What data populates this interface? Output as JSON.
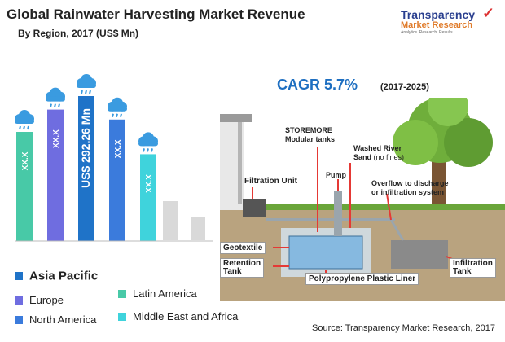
{
  "header": {
    "title": "Global Rainwater Harvesting Market Revenue",
    "subtitle": "By Region, 2017 (US$ Mn)"
  },
  "logo": {
    "line1": "Transparency",
    "line2": "Market Research",
    "tagline": "Analytics. Research. Results."
  },
  "cagr": {
    "label": "CAGR 5.7%",
    "period": "(2017-2025)"
  },
  "colors": {
    "latin_america": "#48c9a7",
    "europe": "#6f6de0",
    "north_america": "#1f73c8",
    "asia_pacific": "#3b7bdc",
    "mea": "#3fd3dc",
    "faded": "#d9d9d9",
    "cloud": "#3a9be0"
  },
  "legend": [
    {
      "label": "Asia Pacific",
      "color": "#1f73c8"
    },
    {
      "label": "Europe",
      "color": "#6f6de0"
    },
    {
      "label": "Latin America",
      "color": "#48c9a7"
    },
    {
      "label": "North America",
      "color": "#3b7bdc"
    },
    {
      "label": "Middle East and Africa",
      "color": "#3fd3dc"
    }
  ],
  "chart_data": {
    "type": "bar",
    "categories": [
      "Latin America",
      "Europe",
      "Asia Pacific",
      "North America",
      "Middle East and Africa"
    ],
    "value_labels": [
      "XX.X",
      "XX.X",
      "US$ 292.26 Mn",
      "XX.X",
      "XX.X"
    ],
    "values": [
      220,
      265,
      292.26,
      245,
      175
    ],
    "highlight": "Asia Pacific",
    "title": "Global Rainwater Harvesting Market Revenue",
    "subtitle": "By Region, 2017 (US$ Mn)",
    "ylim": [
      0,
      300
    ],
    "grid": false
  },
  "diagram": {
    "storemore": "STOREMORE",
    "modular": "Modular tanks",
    "washed1": "Washed River",
    "washed2a": "Sand",
    "washed2b": "(no fines)",
    "filtration": "Filtration Unit",
    "pump": "Pump",
    "overflow1": "Overflow to discharge",
    "overflow2": "or infiltration system",
    "geotextile": "Geotextile",
    "retention1": "Retention",
    "retention2": "Tank",
    "liner": "Polypropylene Plastic Liner",
    "infiltration1": "Infiltration",
    "infiltration2": "Tank"
  },
  "source": "Source: Transparency Market Research, 2017"
}
